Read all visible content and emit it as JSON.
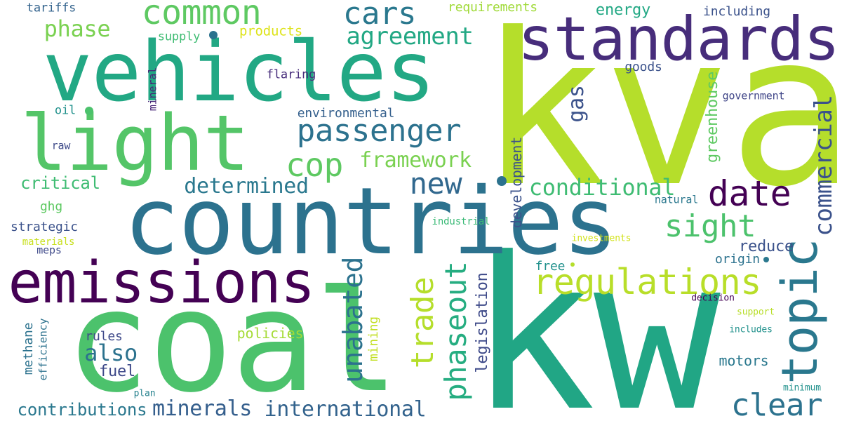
{
  "words": [
    {
      "text": "kva",
      "color": "#b5de2b"
    },
    {
      "text": "kw",
      "color": "#21a685"
    },
    {
      "text": "coal",
      "color": "#4cc26c"
    },
    {
      "text": "countries",
      "color": "#2c728e"
    },
    {
      "text": "vehicles",
      "color": "#22a884"
    },
    {
      "text": "standards",
      "color": "#472d7b"
    },
    {
      "text": "emissions",
      "color": "#440154"
    },
    {
      "text": "light",
      "color": "#54c568"
    },
    {
      "text": "topic",
      "color": "#2a788e"
    },
    {
      "text": "common",
      "color": "#5ec962"
    },
    {
      "text": "regulations",
      "color": "#b8de29"
    },
    {
      "text": "passenger",
      "color": "#2c728e"
    },
    {
      "text": "date",
      "color": "#440154"
    },
    {
      "text": "cars",
      "color": "#2a788e"
    },
    {
      "text": "agreement",
      "color": "#22a884"
    },
    {
      "text": "cop",
      "color": "#5ec962"
    },
    {
      "text": "unabated",
      "color": "#2c728e"
    },
    {
      "text": "clear",
      "color": "#2c728e"
    },
    {
      "text": "phaseout",
      "color": "#26ad81"
    },
    {
      "text": "trade",
      "color": "#b5de2b"
    },
    {
      "text": "sight",
      "color": "#4cc26c"
    },
    {
      "text": "new",
      "color": "#31688e"
    },
    {
      "text": "commercial",
      "color": "#3b528b"
    },
    {
      "text": "conditional",
      "color": "#3fbc73"
    },
    {
      "text": "determined",
      "color": "#2a788e"
    },
    {
      "text": "framework",
      "color": "#7ad151"
    },
    {
      "text": "phase",
      "color": "#7ad151"
    },
    {
      "text": "minerals",
      "color": "#355f8d"
    },
    {
      "text": "international",
      "color": "#33638d"
    },
    {
      "text": "contributions",
      "color": "#2a788e"
    },
    {
      "text": "also",
      "color": "#2c728e"
    },
    {
      "text": "gas",
      "color": "#3b528b"
    },
    {
      "text": "greenhouse",
      "color": "#5ec962"
    },
    {
      "text": "legislation",
      "color": "#3e4a89"
    },
    {
      "text": "reduce",
      "color": "#3b528b"
    },
    {
      "text": "critical",
      "color": "#3fbc73"
    },
    {
      "text": "energy",
      "color": "#22a884"
    },
    {
      "text": "development",
      "color": "#3b528b"
    },
    {
      "text": "fuel",
      "color": "#3e4989"
    },
    {
      "text": "motors",
      "color": "#2a788e"
    },
    {
      "text": "policies",
      "color": "#a5db36"
    },
    {
      "text": "products",
      "color": "#dde318"
    },
    {
      "text": "requirements",
      "color": "#a0da39"
    },
    {
      "text": "mining",
      "color": "#c2df23"
    },
    {
      "text": "including",
      "color": "#3b528b"
    },
    {
      "text": "goods",
      "color": "#3b528b"
    },
    {
      "text": "environmental",
      "color": "#35608d"
    },
    {
      "text": "rules",
      "color": "#3e4989"
    },
    {
      "text": "methane",
      "color": "#2c728e"
    },
    {
      "text": "strategic",
      "color": "#3b528b"
    },
    {
      "text": "free",
      "color": "#21918c"
    },
    {
      "text": "origin",
      "color": "#2c728e"
    },
    {
      "text": "ghg",
      "color": "#5ec962"
    },
    {
      "text": "supply",
      "color": "#3fbc73"
    },
    {
      "text": "tariffs",
      "color": "#33638d"
    },
    {
      "text": "flaring",
      "color": "#472d7b"
    },
    {
      "text": "oil",
      "color": "#21918c"
    },
    {
      "text": "raw",
      "color": "#3e4a89"
    },
    {
      "text": "natural",
      "color": "#2a788e"
    },
    {
      "text": "government",
      "color": "#404688"
    },
    {
      "text": "mineral",
      "color": "#482677"
    },
    {
      "text": "efficiency",
      "color": "#2c728e"
    },
    {
      "text": "meps",
      "color": "#3e4989"
    },
    {
      "text": "materials",
      "color": "#c8e020"
    },
    {
      "text": "industrial",
      "color": "#3aba76"
    },
    {
      "text": "investments",
      "color": "#d2e21b"
    },
    {
      "text": "decision",
      "color": "#440154"
    },
    {
      "text": "support",
      "color": "#b8de29"
    },
    {
      "text": "includes",
      "color": "#21918c"
    },
    {
      "text": "minimum",
      "color": "#21918c"
    },
    {
      "text": "plan",
      "color": "#26828e"
    }
  ]
}
